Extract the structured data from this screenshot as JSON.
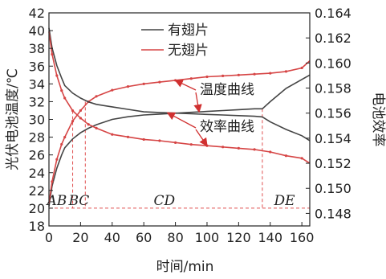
{
  "chart_data": {
    "type": "line",
    "xlabel": "时间/min",
    "ylabel_left": "光伏电池温度/℃",
    "ylabel_right": "电池效率",
    "xlim": [
      0,
      165
    ],
    "ylim_left": [
      18,
      42
    ],
    "ylim_right": [
      0.147,
      0.164
    ],
    "x_ticks": [
      0,
      20,
      40,
      60,
      80,
      100,
      120,
      140,
      160
    ],
    "y_left_ticks": [
      18,
      20,
      22,
      24,
      26,
      28,
      30,
      32,
      34,
      36,
      38,
      40,
      42
    ],
    "y_right_ticks": [
      0.148,
      0.15,
      0.152,
      0.154,
      0.156,
      0.158,
      0.16,
      0.162,
      0.164
    ],
    "legend": {
      "position": "top-center",
      "entries": [
        "有翅片",
        "无翅片"
      ]
    },
    "colors": {
      "有翅片": "#444444",
      "无翅片": "#d64545",
      "markers": "#e05050",
      "arrows": "#d03030"
    },
    "series": [
      {
        "name": "有翅片",
        "quantity": "温度",
        "axis": "left",
        "x": [
          0,
          2,
          5,
          8,
          10,
          15,
          20,
          25,
          30,
          40,
          50,
          60,
          70,
          80,
          90,
          100,
          110,
          120,
          130,
          135,
          140,
          150,
          160,
          165
        ],
        "y": [
          20.2,
          22.5,
          24.5,
          26.0,
          26.8,
          27.8,
          28.5,
          29.0,
          29.4,
          30.0,
          30.3,
          30.5,
          30.6,
          30.7,
          30.8,
          30.9,
          31.0,
          31.1,
          31.2,
          31.2,
          32.0,
          33.5,
          34.5,
          35.0
        ]
      },
      {
        "name": "无翅片",
        "quantity": "温度",
        "axis": "left",
        "x": [
          0,
          2,
          5,
          8,
          10,
          15,
          20,
          25,
          30,
          40,
          50,
          60,
          70,
          80,
          90,
          100,
          110,
          120,
          130,
          140,
          150,
          160,
          165
        ],
        "y": [
          20.5,
          23.0,
          25.5,
          27.2,
          28.0,
          29.8,
          31.0,
          32.0,
          32.6,
          33.3,
          33.7,
          34.0,
          34.2,
          34.4,
          34.6,
          34.8,
          34.9,
          35.0,
          35.1,
          35.2,
          35.4,
          35.8,
          36.6
        ]
      },
      {
        "name": "有翅片",
        "quantity": "效率",
        "axis": "right",
        "x": [
          0,
          2,
          5,
          8,
          10,
          15,
          20,
          25,
          30,
          40,
          50,
          60,
          70,
          80,
          90,
          100,
          110,
          120,
          130,
          135,
          140,
          150,
          160,
          165
        ],
        "y": [
          0.1628,
          0.1612,
          0.1598,
          0.1588,
          0.1582,
          0.1576,
          0.1572,
          0.1569,
          0.1567,
          0.1565,
          0.1563,
          0.1561,
          0.15605,
          0.156,
          0.15595,
          0.1559,
          0.15585,
          0.1558,
          0.15575,
          0.1557,
          0.1553,
          0.1547,
          0.1542,
          0.1538
        ]
      },
      {
        "name": "无翅片",
        "quantity": "效率",
        "axis": "right",
        "x": [
          0,
          2,
          5,
          8,
          10,
          15,
          20,
          25,
          30,
          40,
          50,
          60,
          70,
          80,
          90,
          100,
          110,
          120,
          130,
          140,
          150,
          160,
          165
        ],
        "y": [
          0.1625,
          0.1607,
          0.159,
          0.1578,
          0.1572,
          0.1562,
          0.1556,
          0.1551,
          0.1548,
          0.1543,
          0.1541,
          0.1539,
          0.1538,
          0.15365,
          0.1535,
          0.1534,
          0.1533,
          0.1532,
          0.1531,
          0.1529,
          0.1526,
          0.1524,
          0.152
        ]
      }
    ],
    "annotations": {
      "temperature_curve": "温度曲线",
      "efficiency_curve": "效率曲线"
    },
    "regions": {
      "labels": [
        "AB",
        "BC",
        "CD",
        "DE"
      ],
      "label_x": [
        5,
        19,
        73,
        149
      ],
      "baseline_y": 20,
      "boundaries_x": [
        15,
        23,
        135
      ]
    }
  }
}
